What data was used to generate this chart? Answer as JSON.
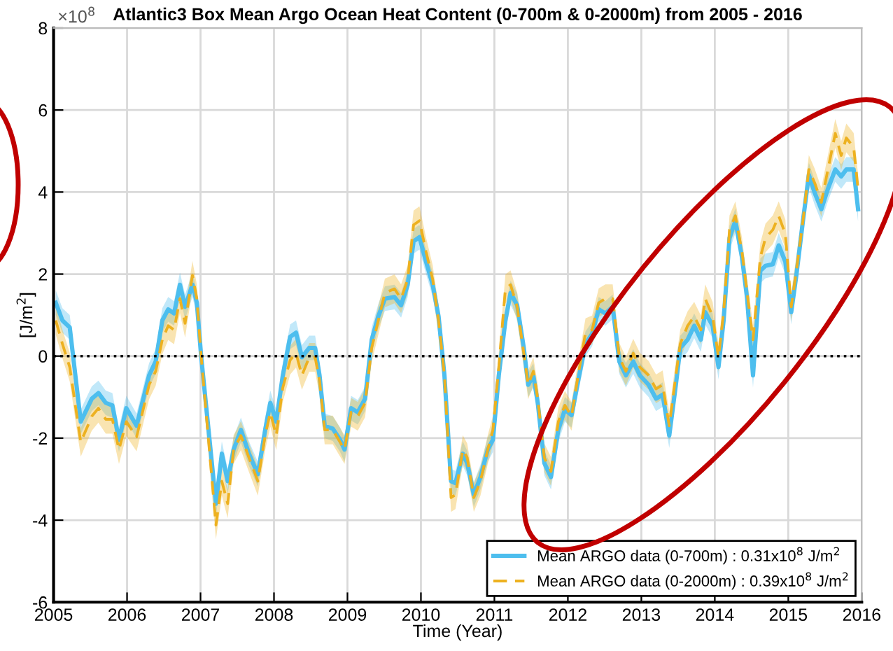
{
  "chart_data": {
    "type": "line",
    "title": "Atlantic3 Box Mean Argo Ocean Heat Content (0-700m & 0-2000m) from 2005 - 2016",
    "xlabel": "Time (Year)",
    "ylabel": "[J/m$^{2}$]",
    "annotations": [
      "×10$^{8}$"
    ],
    "x": [
      2005.03,
      2005.12,
      2005.22,
      2005.37,
      2005.52,
      2005.61,
      2005.71,
      2005.8,
      2005.89,
      2005.99,
      2006.13,
      2006.3,
      2006.39,
      2006.48,
      2006.56,
      2006.64,
      2006.72,
      2006.79,
      2006.89,
      2006.95,
      2007.01,
      2007.21,
      2007.29,
      2007.37,
      2007.45,
      2007.55,
      2007.66,
      2007.78,
      2007.88,
      2007.95,
      2008.03,
      2008.12,
      2008.22,
      2008.3,
      2008.38,
      2008.48,
      2008.56,
      2008.62,
      2008.69,
      2008.8,
      2008.9,
      2008.96,
      2009.05,
      2009.14,
      2009.24,
      2009.33,
      2009.42,
      2009.51,
      2009.64,
      2009.73,
      2009.82,
      2009.9,
      2009.98,
      2010.07,
      2010.16,
      2010.24,
      2010.32,
      2010.41,
      2010.47,
      2010.57,
      2010.63,
      2010.72,
      2010.81,
      2010.91,
      2010.98,
      2011.06,
      2011.15,
      2011.22,
      2011.31,
      2011.4,
      2011.46,
      2011.53,
      2011.59,
      2011.68,
      2011.77,
      2011.87,
      2011.96,
      2012.05,
      2012.14,
      2012.24,
      2012.33,
      2012.42,
      2012.51,
      2012.61,
      2012.7,
      2012.79,
      2012.89,
      2012.98,
      2013.1,
      2013.2,
      2013.29,
      2013.38,
      2013.47,
      2013.53,
      2013.63,
      2013.72,
      2013.81,
      2013.87,
      2013.97,
      2014.05,
      2014.12,
      2014.2,
      2014.28,
      2014.37,
      2014.44,
      2014.52,
      2014.62,
      2014.69,
      2014.79,
      2014.87,
      2014.96,
      2015.04,
      2015.11,
      2015.2,
      2015.28,
      2015.36,
      2015.45,
      2015.54,
      2015.64,
      2015.72,
      2015.79,
      2015.89,
      2015.95
    ],
    "series": [
      {
        "name": "Mean ARGO data (0-700m) : 0.31x10$^{8}$ J/m$^{2}$",
        "color": "#4dbeee",
        "line_style": "solid",
        "values": [
          1.3,
          0.87,
          0.7,
          -1.6,
          -1.04,
          -0.9,
          -1.14,
          -1.2,
          -2.04,
          -1.27,
          -1.7,
          -0.47,
          -0.13,
          0.87,
          1.14,
          1.04,
          1.74,
          1.2,
          1.74,
          1.3,
          -0.03,
          -3.6,
          -2.38,
          -3.05,
          -2.28,
          -1.8,
          -2.38,
          -2.88,
          -1.8,
          -1.14,
          -1.6,
          -0.47,
          0.47,
          0.57,
          -0.03,
          0.2,
          0.2,
          -0.47,
          -1.7,
          -1.77,
          -2.04,
          -2.28,
          -1.27,
          -1.37,
          -1.04,
          0.4,
          0.97,
          1.4,
          1.44,
          1.24,
          1.74,
          2.8,
          2.9,
          2.3,
          1.74,
          0.97,
          -0.47,
          -3.05,
          -3.1,
          -2.38,
          -2.61,
          -3.38,
          -2.95,
          -2.28,
          -2.04,
          -0.47,
          0.87,
          1.54,
          1.24,
          0.2,
          -0.7,
          -0.47,
          -1.14,
          -2.61,
          -2.95,
          -1.8,
          -1.3,
          -1.44,
          -0.6,
          0.3,
          0.54,
          1.14,
          1.04,
          1.2,
          -0.13,
          -0.47,
          -0.13,
          -0.47,
          -0.7,
          -1.04,
          -0.94,
          -1.94,
          -0.7,
          0.2,
          0.4,
          0.74,
          0.4,
          1.07,
          0.74,
          -0.27,
          0.87,
          2.88,
          3.3,
          2.41,
          1.4,
          -0.47,
          2.08,
          2.2,
          2.24,
          2.7,
          2.3,
          1.07,
          1.97,
          3.3,
          4.42,
          3.98,
          3.58,
          4.08,
          4.55,
          4.38,
          4.55,
          4.55,
          3.58
        ],
        "lower": [
          1.0,
          0.57,
          0.4,
          -1.9,
          -1.34,
          -1.2,
          -1.44,
          -1.5,
          -2.34,
          -1.57,
          -2.0,
          -0.77,
          -0.43,
          0.57,
          0.84,
          0.74,
          1.44,
          0.9,
          1.44,
          1.0,
          -0.33,
          -3.9,
          -2.68,
          -3.35,
          -2.58,
          -2.1,
          -2.68,
          -3.18,
          -2.1,
          -1.44,
          -1.9,
          -0.77,
          0.17,
          0.27,
          -0.33,
          -0.1,
          -0.1,
          -0.77,
          -2.0,
          -2.07,
          -2.34,
          -2.58,
          -1.57,
          -1.67,
          -1.34,
          0.1,
          0.67,
          1.1,
          1.14,
          0.94,
          1.44,
          2.5,
          2.6,
          2.0,
          1.44,
          0.67,
          -0.77,
          -3.35,
          -3.4,
          -2.68,
          -2.91,
          -3.68,
          -3.25,
          -2.58,
          -2.34,
          -0.77,
          0.57,
          1.24,
          0.94,
          -0.1,
          -1.0,
          -0.77,
          -1.44,
          -2.91,
          -3.25,
          -2.1,
          -1.6,
          -1.74,
          -0.9,
          0.0,
          0.24,
          0.84,
          0.74,
          0.9,
          -0.43,
          -0.77,
          -0.43,
          -0.77,
          -1.0,
          -1.34,
          -1.24,
          -2.24,
          -1.0,
          -0.1,
          0.1,
          0.44,
          0.1,
          0.77,
          0.44,
          -0.57,
          0.57,
          2.58,
          3.0,
          2.11,
          1.1,
          -0.77,
          1.78,
          1.9,
          1.94,
          2.4,
          2.0,
          0.77,
          1.67,
          3.0,
          4.12,
          3.68,
          3.28,
          3.78,
          4.25,
          4.08,
          4.25,
          4.25,
          3.28
        ],
        "upper": [
          1.6,
          1.17,
          1.0,
          -1.3,
          -0.74,
          -0.6,
          -0.84,
          -0.9,
          -1.74,
          -0.97,
          -1.4,
          -0.17,
          0.17,
          1.17,
          1.44,
          1.34,
          2.04,
          1.5,
          2.04,
          1.6,
          0.27,
          -3.3,
          -2.08,
          -2.75,
          -1.98,
          -1.5,
          -2.08,
          -2.58,
          -1.5,
          -0.84,
          -1.3,
          -0.17,
          0.77,
          0.87,
          0.27,
          0.5,
          0.5,
          -0.17,
          -1.4,
          -1.47,
          -1.74,
          -1.98,
          -0.97,
          -1.07,
          -0.74,
          0.7,
          1.27,
          1.7,
          1.74,
          1.54,
          2.04,
          3.1,
          3.2,
          2.6,
          2.04,
          1.27,
          -0.17,
          -2.75,
          -2.8,
          -2.08,
          -2.31,
          -3.08,
          -2.65,
          -1.98,
          -1.74,
          -0.17,
          1.17,
          1.84,
          1.54,
          0.5,
          -0.4,
          -0.17,
          -0.84,
          -2.31,
          -2.65,
          -1.5,
          -1.0,
          -1.14,
          -0.3,
          0.6,
          0.84,
          1.44,
          1.34,
          1.5,
          0.17,
          -0.17,
          0.17,
          -0.17,
          -0.4,
          -0.74,
          -0.64,
          -1.64,
          -0.4,
          0.5,
          0.7,
          1.04,
          0.7,
          1.37,
          1.04,
          0.03,
          1.17,
          3.18,
          3.6,
          2.71,
          1.7,
          -0.17,
          2.38,
          2.5,
          2.54,
          3.0,
          2.6,
          1.37,
          2.27,
          3.6,
          4.72,
          4.28,
          3.88,
          4.38,
          4.85,
          4.68,
          4.85,
          4.85,
          3.88
        ]
      },
      {
        "name": "Mean ARGO data (0-2000m) : 0.39x10$^{8}$ J/m$^{2}$",
        "color": "#edb120",
        "line_style": "dashed",
        "values": [
          0.87,
          0.3,
          -0.27,
          -2.1,
          -1.47,
          -1.27,
          -1.54,
          -1.54,
          -2.28,
          -1.6,
          -1.97,
          -0.7,
          -0.37,
          0.4,
          0.74,
          0.64,
          1.4,
          0.8,
          1.97,
          1.4,
          -0.03,
          -4.12,
          -3.05,
          -3.6,
          -2.28,
          -1.94,
          -2.48,
          -3.05,
          -1.94,
          -1.37,
          -1.94,
          -0.77,
          -0.1,
          0.07,
          -0.47,
          -0.03,
          -0.03,
          -0.6,
          -1.8,
          -1.8,
          -2.1,
          -2.28,
          -1.37,
          -1.47,
          -1.14,
          0.2,
          0.87,
          1.54,
          1.64,
          1.4,
          1.87,
          3.2,
          3.3,
          2.54,
          1.87,
          0.87,
          -0.47,
          -3.45,
          -3.38,
          -2.28,
          -2.48,
          -3.45,
          -3.05,
          -2.28,
          -1.8,
          -0.27,
          1.64,
          1.74,
          1.2,
          0.07,
          -0.7,
          -0.37,
          -1.04,
          -2.48,
          -2.81,
          -1.6,
          -1.2,
          -1.47,
          -0.47,
          0.57,
          0.64,
          1.3,
          1.4,
          1.4,
          -0.03,
          -0.37,
          0.07,
          -0.27,
          -0.47,
          -0.8,
          -0.7,
          -1.7,
          -0.47,
          0.3,
          0.74,
          0.97,
          0.64,
          1.4,
          0.97,
          -0.03,
          1.07,
          3.08,
          3.42,
          2.54,
          1.54,
          0.4,
          2.41,
          2.88,
          3.08,
          3.42,
          2.98,
          1.2,
          2.08,
          3.3,
          4.55,
          4.22,
          3.75,
          4.55,
          5.43,
          4.89,
          5.32,
          5.09,
          4.08
        ],
        "lower": [
          0.52,
          -0.05,
          -0.62,
          -2.45,
          -1.82,
          -1.62,
          -1.89,
          -1.89,
          -2.63,
          -1.95,
          -2.32,
          -1.05,
          -0.72,
          0.05,
          0.39,
          0.29,
          1.05,
          0.45,
          1.62,
          1.05,
          -0.38,
          -4.47,
          -3.4,
          -3.95,
          -2.63,
          -2.29,
          -2.83,
          -3.4,
          -2.29,
          -1.72,
          -2.29,
          -1.12,
          -0.45,
          -0.28,
          -0.82,
          -0.38,
          -0.38,
          -0.95,
          -2.15,
          -2.15,
          -2.45,
          -2.63,
          -1.72,
          -1.82,
          -1.49,
          -0.15,
          0.52,
          1.19,
          1.29,
          1.05,
          1.52,
          2.85,
          2.95,
          2.19,
          1.52,
          0.52,
          -0.82,
          -3.8,
          -3.73,
          -2.63,
          -2.83,
          -3.8,
          -3.4,
          -2.63,
          -2.15,
          -0.62,
          1.29,
          1.39,
          0.85,
          -0.28,
          -1.05,
          -0.72,
          -1.39,
          -2.83,
          -3.16,
          -1.95,
          -1.55,
          -1.82,
          -0.82,
          0.22,
          0.29,
          0.95,
          1.05,
          1.05,
          -0.38,
          -0.72,
          -0.28,
          -0.62,
          -0.82,
          -1.15,
          -1.05,
          -2.05,
          -0.82,
          -0.05,
          0.39,
          0.62,
          0.29,
          1.05,
          0.62,
          -0.38,
          0.72,
          2.73,
          3.07,
          2.19,
          1.19,
          0.05,
          2.06,
          2.53,
          2.73,
          3.07,
          2.63,
          0.85,
          1.73,
          2.95,
          4.2,
          3.87,
          3.4,
          4.2,
          5.08,
          4.54,
          4.97,
          4.74,
          3.73
        ],
        "upper": [
          1.22,
          0.65,
          0.08,
          -1.75,
          -1.12,
          -0.92,
          -1.19,
          -1.19,
          -1.93,
          -1.25,
          -1.62,
          -0.35,
          -0.02,
          0.75,
          1.09,
          0.99,
          1.75,
          1.15,
          2.32,
          1.75,
          0.32,
          -3.77,
          -2.7,
          -3.25,
          -1.93,
          -1.59,
          -2.13,
          -2.7,
          -1.59,
          -1.02,
          -1.59,
          -0.42,
          0.25,
          0.42,
          -0.12,
          0.32,
          0.32,
          -0.25,
          -1.45,
          -1.45,
          -1.75,
          -1.93,
          -1.02,
          -1.12,
          -0.79,
          0.55,
          1.22,
          1.89,
          1.99,
          1.75,
          2.22,
          3.55,
          3.65,
          2.89,
          2.22,
          1.22,
          -0.12,
          -3.1,
          -3.03,
          -1.93,
          -2.13,
          -3.1,
          -2.7,
          -1.93,
          -1.45,
          0.08,
          1.99,
          2.09,
          1.55,
          0.42,
          -0.35,
          -0.02,
          -0.69,
          -2.13,
          -2.46,
          -1.25,
          -0.85,
          -1.12,
          -0.12,
          0.92,
          0.99,
          1.65,
          1.75,
          1.75,
          0.32,
          -0.02,
          0.42,
          0.08,
          -0.12,
          -0.45,
          -0.35,
          -1.35,
          -0.12,
          0.65,
          1.09,
          1.32,
          0.99,
          1.75,
          1.32,
          0.32,
          1.42,
          3.43,
          3.77,
          2.89,
          1.89,
          0.75,
          2.76,
          3.23,
          3.43,
          3.77,
          3.33,
          1.55,
          2.43,
          3.65,
          4.9,
          4.57,
          4.1,
          4.9,
          5.78,
          5.24,
          5.67,
          5.44,
          4.43
        ]
      }
    ],
    "xlim": [
      2005,
      2016
    ],
    "xticks": [
      2005,
      2006,
      2007,
      2008,
      2009,
      2010,
      2011,
      2012,
      2013,
      2014,
      2015,
      2016
    ],
    "ylim": [
      -6,
      8
    ],
    "yticks": [
      -6,
      -4,
      -2,
      0,
      2,
      4,
      6,
      8
    ],
    "ref_lines": [
      {
        "axis": "y",
        "value": 0,
        "color": "#000000",
        "line_style": "dotted"
      }
    ],
    "grid": true,
    "legend": "bottom right",
    "marker": "none"
  }
}
